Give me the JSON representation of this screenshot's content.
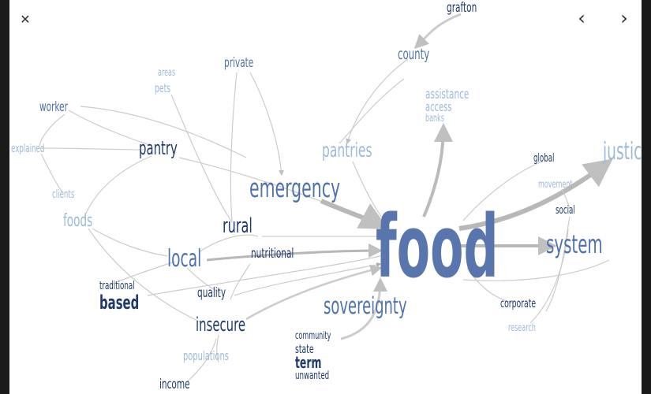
{
  "overlay": {
    "close_glyph": "✕",
    "prev_glyph": "‹",
    "next_glyph": "›"
  },
  "colors": {
    "dark": "#1f3a6e",
    "mid": "#4f72aa",
    "light": "#9dbadb",
    "edge": "#c8c8c8",
    "edge_strong": "#b4b4b4"
  },
  "words": {
    "grafton": "grafton",
    "county": "county",
    "private": "private",
    "areas": "areas",
    "pets": "pets",
    "assistance": "assistance",
    "access": "access",
    "banks": "banks",
    "worker": "worker",
    "explained": "explained",
    "pantry": "pantry",
    "pantries": "pantries",
    "emergency": "emergency",
    "justice": "justice",
    "global": "global",
    "movement": "movement",
    "clients": "clients",
    "foods": "foods",
    "rural": "rural",
    "social": "social",
    "food": "food",
    "local": "local",
    "nutritional": "nutritional",
    "system": "system",
    "traditional": "traditional",
    "based": "based",
    "quality": "quality",
    "sovereignty": "sovereignty",
    "corporate": "corporate",
    "research": "research",
    "insecure": "insecure",
    "community": "community",
    "state": "state",
    "term": "term",
    "unwanted": "unwanted",
    "populations": "populations",
    "income": "income"
  }
}
